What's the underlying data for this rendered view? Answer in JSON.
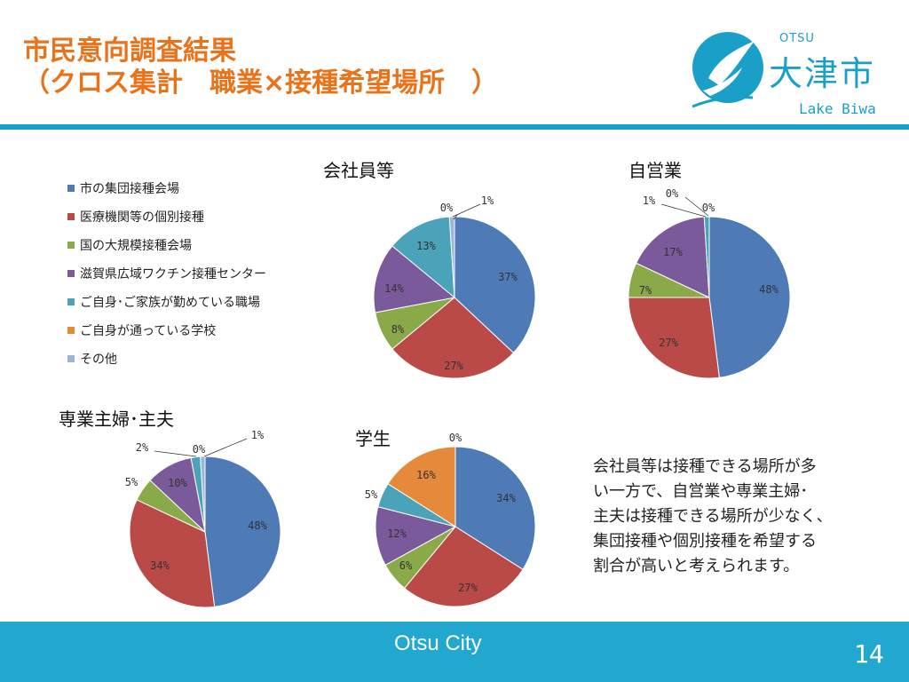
{
  "title": {
    "line1": "市民意向調査結果",
    "line2": "（クロス集計　職業×接種希望場所　）"
  },
  "logo": {
    "otsu": "OTSU",
    "kanji": "大津市",
    "lake": "Lake Biwa"
  },
  "colors": {
    "accent": "#1a9fc9",
    "title": "#e8731a",
    "series": [
      "#4e7ab5",
      "#b94a48",
      "#8aaa4a",
      "#7a5a9a",
      "#4aa3b8",
      "#e58a3a",
      "#9ab5d6"
    ]
  },
  "legend": [
    "市の集団接種会場",
    "医療機関等の個別接種",
    "国の大規模接種会場",
    "滋賀県広域ワクチン接種センター",
    "ご自身･ご家族が勤めている職場",
    "ご自身が通っている学校",
    "その他"
  ],
  "chart_data": [
    {
      "type": "pie",
      "title": "会社員等",
      "categories": [
        "市の集団接種会場",
        "医療機関等の個別接種",
        "国の大規模接種会場",
        "滋賀県広域ワクチン接種センター",
        "ご自身･ご家族が勤めている職場",
        "ご自身が通っている学校",
        "その他"
      ],
      "values": [
        37,
        27,
        8,
        14,
        13,
        0,
        1
      ],
      "labels": [
        "37%",
        "27%",
        "8%",
        "14%",
        "13%",
        "0%",
        "1%"
      ]
    },
    {
      "type": "pie",
      "title": "自営業",
      "categories": [
        "市の集団接種会場",
        "医療機関等の個別接種",
        "国の大規模接種会場",
        "滋賀県広域ワクチン接種センター",
        "ご自身･ご家族が勤めている職場",
        "ご自身が通っている学校",
        "その他"
      ],
      "values": [
        48,
        27,
        7,
        17,
        1,
        0,
        0
      ],
      "labels": [
        "48%",
        "27%",
        "7%",
        "17%",
        "1%",
        "0%",
        "0%"
      ]
    },
    {
      "type": "pie",
      "title": "専業主婦･主夫",
      "categories": [
        "市の集団接種会場",
        "医療機関等の個別接種",
        "国の大規模接種会場",
        "滋賀県広域ワクチン接種センター",
        "ご自身･ご家族が勤めている職場",
        "ご自身が通っている学校",
        "その他"
      ],
      "values": [
        48,
        34,
        5,
        10,
        2,
        0,
        1
      ],
      "labels": [
        "48%",
        "34%",
        "5%",
        "10%",
        "2%",
        "0%",
        "1%"
      ]
    },
    {
      "type": "pie",
      "title": "学生",
      "categories": [
        "市の集団接種会場",
        "医療機関等の個別接種",
        "国の大規模接種会場",
        "滋賀県広域ワクチン接種センター",
        "ご自身･ご家族が勤めている職場",
        "ご自身が通っている学校",
        "その他"
      ],
      "values": [
        34,
        27,
        6,
        12,
        5,
        16,
        0
      ],
      "labels": [
        "34%",
        "27%",
        "6%",
        "12%",
        "5%",
        "16%",
        "0%"
      ]
    }
  ],
  "note": {
    "lines": [
      "会社員等は接種できる場所が多",
      "い一方で、自営業や専業主婦･",
      "主夫は接種できる場所が少なく、",
      "集団接種や個別接種を希望する",
      "割合が高いと考えられます。"
    ]
  },
  "footer": {
    "city": "Otsu City",
    "page": "14"
  }
}
